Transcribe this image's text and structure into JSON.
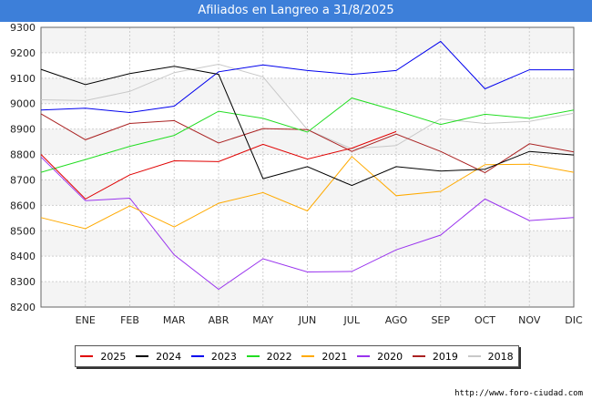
{
  "header": {
    "title": "Afiliados en Langreo a 31/8/2025"
  },
  "footer": {
    "url": "http://www.foro-ciudad.com"
  },
  "chart_data": {
    "type": "line",
    "title": "Afiliados en Langreo a 31/8/2025",
    "x_tick_labels": [
      "ENE",
      "FEB",
      "MAR",
      "ABR",
      "MAY",
      "JUN",
      "JUL",
      "AGO",
      "SEP",
      "OCT",
      "NOV",
      "DIC"
    ],
    "y_ticks": [
      8200,
      8300,
      8400,
      8500,
      8600,
      8700,
      8800,
      8900,
      9000,
      9100,
      9200,
      9300
    ],
    "ylim": [
      8200,
      9300
    ],
    "grid": true,
    "legend_position": "bottom",
    "series": [
      {
        "name": "2025",
        "color": "#e00000",
        "values": [
          8800,
          8625,
          8720,
          8775,
          8772,
          8840,
          8782,
          8825,
          8890
        ]
      },
      {
        "name": "2024",
        "color": "#000000",
        "values": [
          9135,
          9075,
          9118,
          9147,
          9115,
          8705,
          8752,
          8678,
          8752,
          8735,
          8742,
          8812,
          8798
        ]
      },
      {
        "name": "2023",
        "color": "#0000ee",
        "values": [
          8975,
          8982,
          8965,
          8990,
          9125,
          9152,
          9130,
          9115,
          9130,
          9245,
          9058,
          9133,
          9133
        ]
      },
      {
        "name": "2022",
        "color": "#22dd22",
        "values": [
          8730,
          8780,
          8832,
          8875,
          8970,
          8942,
          8888,
          9022,
          8972,
          8918,
          8958,
          8942,
          8975
        ]
      },
      {
        "name": "2021",
        "color": "#ffaa00",
        "values": [
          8552,
          8508,
          8598,
          8515,
          8608,
          8650,
          8578,
          8792,
          8638,
          8655,
          8760,
          8762,
          8730
        ]
      },
      {
        "name": "2020",
        "color": "#9933ee",
        "values": [
          8790,
          8618,
          8628,
          8405,
          8270,
          8390,
          8338,
          8340,
          8425,
          8483,
          8625,
          8540,
          8552
        ]
      },
      {
        "name": "2019",
        "color": "#aa2222",
        "values": [
          8960,
          8858,
          8922,
          8933,
          8845,
          8902,
          8898,
          8812,
          8880,
          8812,
          8728,
          8842,
          8810
        ]
      },
      {
        "name": "2018",
        "color": "#c8c8c8",
        "values": [
          9015,
          9012,
          9048,
          9122,
          9155,
          9105,
          8898,
          8822,
          8835,
          8940,
          8922,
          8930,
          8962
        ]
      }
    ]
  }
}
